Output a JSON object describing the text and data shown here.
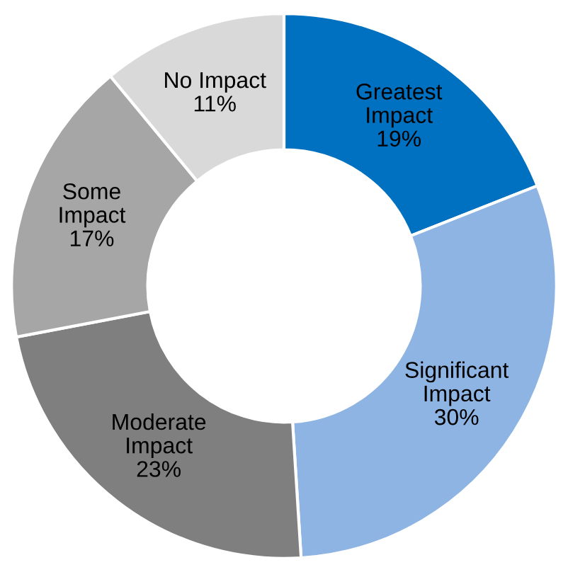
{
  "chart_data": {
    "type": "donut",
    "categories": [
      "Greatest\nImpact",
      "Significant\nImpact",
      "Moderate\nImpact",
      "Some\nImpact",
      "No Impact"
    ],
    "values": [
      19,
      30,
      23,
      17,
      11
    ],
    "colors": [
      "#0070c0",
      "#8eb4e3",
      "#7f7f7f",
      "#a6a6a6",
      "#d9d9d9"
    ],
    "value_labels": [
      "19%",
      "30%",
      "23%",
      "17%",
      "11%"
    ],
    "legend": false
  }
}
